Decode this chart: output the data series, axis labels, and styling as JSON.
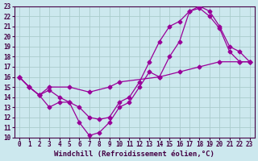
{
  "xlabel": "Windchill (Refroidissement éolien,°C)",
  "background_color": "#cce8ee",
  "grid_color": "#aacccc",
  "line_color": "#990099",
  "xlim": [
    -0.5,
    23.5
  ],
  "ylim": [
    10,
    23
  ],
  "xticks": [
    0,
    1,
    2,
    3,
    4,
    5,
    6,
    7,
    8,
    9,
    10,
    11,
    12,
    13,
    14,
    15,
    16,
    17,
    18,
    19,
    20,
    21,
    22,
    23
  ],
  "yticks": [
    10,
    11,
    12,
    13,
    14,
    15,
    16,
    17,
    18,
    19,
    20,
    21,
    22,
    23
  ],
  "line1_x": [
    0,
    1,
    2,
    3,
    5,
    7,
    9,
    10,
    14,
    16,
    18,
    20,
    22,
    23
  ],
  "line1_y": [
    16,
    15,
    14.2,
    15,
    15,
    14.5,
    15,
    15.5,
    16,
    16.5,
    17,
    17.5,
    17.5,
    17.5
  ],
  "line2_x": [
    0,
    1,
    2,
    3,
    4,
    5,
    6,
    7,
    8,
    9,
    10,
    11,
    12,
    13,
    14,
    15,
    16,
    17,
    18,
    19,
    20,
    21,
    22,
    23
  ],
  "line2_y": [
    16,
    15,
    14.2,
    13,
    13.5,
    13.5,
    11.5,
    10.2,
    10.5,
    11.5,
    13,
    13.5,
    15,
    16.5,
    16,
    18,
    19.5,
    22.5,
    23,
    22.5,
    21,
    19,
    18.5,
    17.5
  ],
  "line3_x": [
    0,
    1,
    2,
    3,
    4,
    5,
    6,
    7,
    8,
    9,
    10,
    11,
    12,
    13,
    14,
    15,
    16,
    17,
    18,
    19,
    20,
    21,
    22,
    23
  ],
  "line3_y": [
    16,
    15,
    14.2,
    14.7,
    14,
    13.5,
    13,
    12,
    11.8,
    12,
    13.5,
    14,
    15.5,
    17.5,
    19.5,
    21,
    21.5,
    22.5,
    22.8,
    22,
    20.8,
    18.5,
    17.5,
    17.5
  ],
  "marker": "D",
  "markersize": 2.5,
  "linewidth": 0.9,
  "tick_fontsize": 5.5,
  "xlabel_fontsize": 6.5
}
